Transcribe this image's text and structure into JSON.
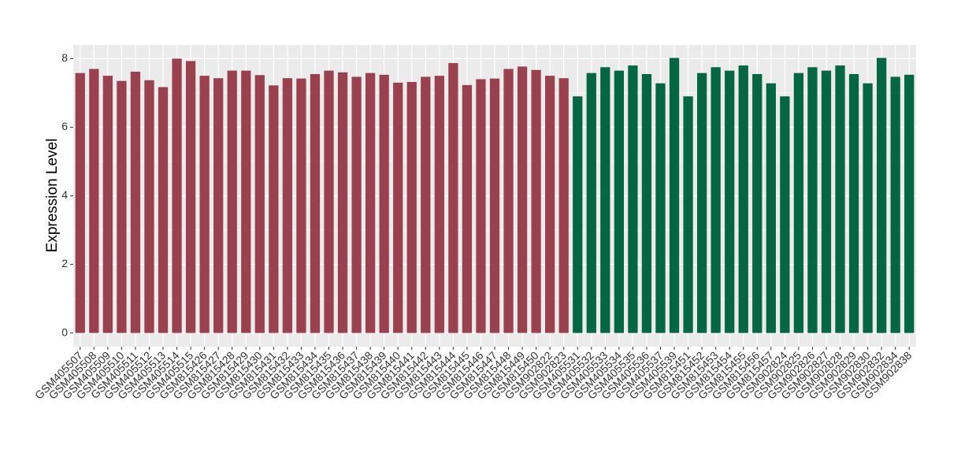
{
  "chart_data": {
    "type": "bar",
    "y_label": "Expression Level",
    "categories": [
      "GSM405507",
      "GSM405508",
      "GSM405509",
      "GSM405510",
      "GSM405511",
      "GSM405512",
      "GSM405513",
      "GSM405514",
      "GSM405515",
      "GSM815426",
      "GSM815427",
      "GSM815428",
      "GSM815429",
      "GSM815430",
      "GSM815431",
      "GSM815432",
      "GSM815433",
      "GSM815434",
      "GSM815435",
      "GSM815436",
      "GSM815437",
      "GSM815438",
      "GSM815439",
      "GSM815440",
      "GSM815441",
      "GSM815442",
      "GSM815443",
      "GSM815444",
      "GSM815445",
      "GSM815446",
      "GSM815447",
      "GSM815448",
      "GSM815449",
      "GSM815450",
      "GSM902822",
      "GSM902823",
      "GSM405531",
      "GSM405532",
      "GSM405533",
      "GSM405534",
      "GSM405535",
      "GSM405536",
      "GSM405537",
      "GSM405539",
      "GSM815451",
      "GSM815452",
      "GSM815453",
      "GSM815454",
      "GSM815455",
      "GSM815456",
      "GSM815457",
      "GSM902824",
      "GSM902825",
      "GSM902826",
      "GSM902827",
      "GSM902828",
      "GSM902829",
      "GSM902830",
      "GSM902832",
      "GSM902834",
      "GSM902838"
    ],
    "values": [
      7.58,
      7.7,
      7.5,
      7.35,
      7.62,
      7.37,
      7.17,
      8.0,
      7.93,
      7.5,
      7.43,
      7.65,
      7.65,
      7.52,
      7.22,
      7.43,
      7.42,
      7.55,
      7.65,
      7.6,
      7.47,
      7.58,
      7.53,
      7.3,
      7.32,
      7.47,
      7.5,
      7.87,
      7.23,
      7.4,
      7.42,
      7.7,
      7.77,
      7.67,
      7.5,
      7.43,
      6.9,
      7.58,
      7.75,
      7.65,
      7.8,
      7.55,
      7.28,
      8.02,
      6.9,
      7.58,
      7.75,
      7.65,
      7.8,
      7.55,
      7.28,
      6.9,
      7.58,
      7.75,
      7.65,
      7.8,
      7.55,
      7.28,
      8.02,
      7.47,
      7.53
    ],
    "colors": [
      "#9a4150",
      "#9a4150",
      "#9a4150",
      "#9a4150",
      "#9a4150",
      "#9a4150",
      "#9a4150",
      "#9a4150",
      "#9a4150",
      "#9a4150",
      "#9a4150",
      "#9a4150",
      "#9a4150",
      "#9a4150",
      "#9a4150",
      "#9a4150",
      "#9a4150",
      "#9a4150",
      "#9a4150",
      "#9a4150",
      "#9a4150",
      "#9a4150",
      "#9a4150",
      "#9a4150",
      "#9a4150",
      "#9a4150",
      "#9a4150",
      "#9a4150",
      "#9a4150",
      "#9a4150",
      "#9a4150",
      "#9a4150",
      "#9a4150",
      "#9a4150",
      "#9a4150",
      "#9a4150",
      "#056644",
      "#056644",
      "#056644",
      "#056644",
      "#056644",
      "#056644",
      "#056644",
      "#056644",
      "#056644",
      "#056644",
      "#056644",
      "#056644",
      "#056644",
      "#056644",
      "#056644",
      "#056644",
      "#056644",
      "#056644",
      "#056644",
      "#056644",
      "#056644",
      "#056644",
      "#056644",
      "#056644",
      "#056644"
    ],
    "ylim": [
      -0.4,
      8.4
    ],
    "yticks": [
      0,
      2,
      4,
      6,
      8
    ],
    "grid": true
  }
}
